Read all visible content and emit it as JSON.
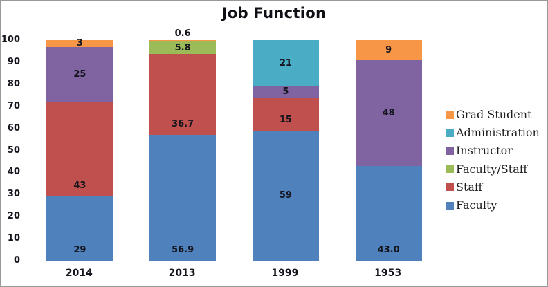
{
  "chart_data": {
    "type": "bar",
    "variant": "stacked-column",
    "title": "Job Function",
    "categories": [
      "2014",
      "2013",
      "1999",
      "1953"
    ],
    "series": [
      {
        "name": "Faculty",
        "color": "#4F81BD",
        "values": [
          29,
          56.9,
          59,
          43.0
        ],
        "value_labels": [
          "29",
          "56.9",
          "59",
          "43.0"
        ],
        "label_anchors": [
          "bottom",
          "bottom",
          "center",
          "bottom"
        ]
      },
      {
        "name": "Staff",
        "color": "#C0504D",
        "values": [
          43,
          36.7,
          15,
          0
        ],
        "value_labels": [
          "43",
          "36.7",
          "15",
          ""
        ],
        "label_anchors": [
          "bottom",
          "bottom",
          "bottom",
          "center"
        ]
      },
      {
        "name": "Faculty/Staff",
        "color": "#9BBB59",
        "values": [
          0,
          5.8,
          0,
          0
        ],
        "value_labels": [
          "",
          "5.8",
          "",
          ""
        ],
        "label_anchors": [
          "center",
          "center",
          "center",
          "center"
        ]
      },
      {
        "name": "Instructor",
        "color": "#8064A2",
        "values": [
          25,
          0,
          5,
          48
        ],
        "value_labels": [
          "25",
          "",
          "5",
          "48"
        ],
        "label_anchors": [
          "center",
          "center",
          "center",
          "center"
        ]
      },
      {
        "name": "Administration",
        "color": "#4BACC6",
        "values": [
          0,
          0,
          21,
          0
        ],
        "value_labels": [
          "",
          "",
          "21",
          ""
        ],
        "label_anchors": [
          "center",
          "center",
          "center",
          "center"
        ]
      },
      {
        "name": "Grad Student",
        "color": "#F79646",
        "values": [
          3,
          0.6,
          0,
          9
        ],
        "value_labels": [
          "3",
          "0.6",
          "",
          "9"
        ],
        "label_anchors": [
          "center",
          "outside",
          "center",
          "center"
        ]
      }
    ],
    "ylim": [
      0,
      100
    ],
    "yticks": [
      0,
      10,
      20,
      30,
      40,
      50,
      60,
      70,
      80,
      90,
      100
    ],
    "xlabel": "",
    "ylabel": "",
    "grid": false,
    "legend": {
      "position": "right",
      "entries_top_to_bottom": [
        "Grad Student",
        "Administration",
        "Instructor",
        "Faculty/Staff",
        "Staff",
        "Faculty"
      ]
    },
    "colors": {
      "axis_line": "#8C8C8C",
      "label_text": "#15151D",
      "frame_border": "#999999",
      "background": "#FFFFFF"
    }
  }
}
